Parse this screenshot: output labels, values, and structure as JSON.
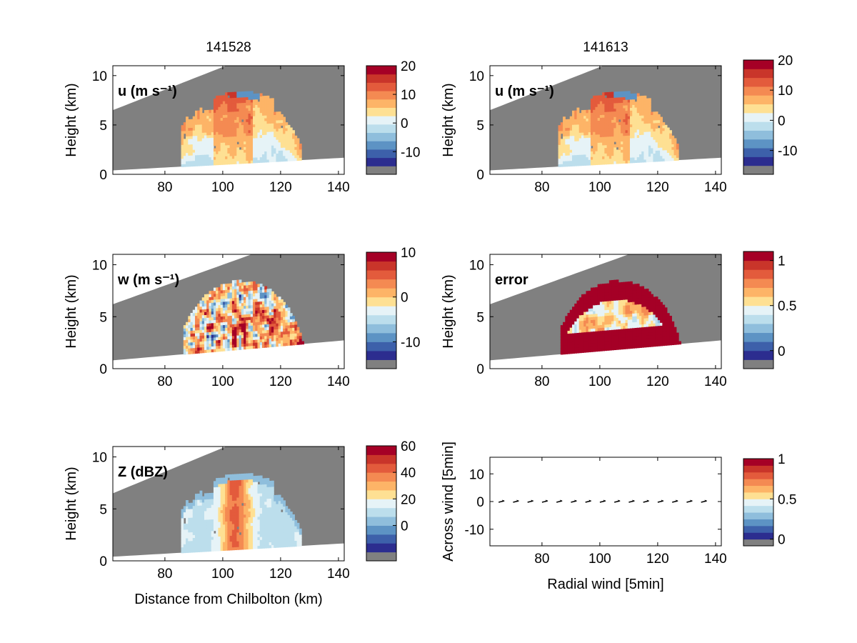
{
  "figure": {
    "timestamps": [
      "141528",
      "141613"
    ]
  },
  "colors": {
    "background_mask": "#808080",
    "colormap": [
      "#2c2d8f",
      "#3d60aa",
      "#5d93c4",
      "#8fbedc",
      "#bcdeec",
      "#e6f3f7",
      "#fee093",
      "#fdb467",
      "#f48a52",
      "#e35b3c",
      "#c9352a",
      "#a50026"
    ]
  },
  "chart_data": [
    {
      "type": "heatmap",
      "id": "u1",
      "title": "141528",
      "annotation": "u (m s⁻¹)",
      "ylabel": "Height (km)",
      "xlabel": "",
      "xlim": [
        62,
        142
      ],
      "ylim": [
        0,
        11
      ],
      "xticks": [
        80,
        100,
        120,
        140
      ],
      "yticks": [
        0,
        5,
        10
      ],
      "field": "u",
      "colorbar": {
        "ticks": [
          "20",
          "10",
          "0",
          "-10"
        ],
        "range": [
          -15,
          20
        ],
        "tick_values": [
          20,
          10,
          0,
          -10
        ]
      }
    },
    {
      "type": "heatmap",
      "id": "u2",
      "title": "141613",
      "annotation": "u (m s⁻¹)",
      "ylabel": "Height (km)",
      "xlabel": "",
      "xlim": [
        62,
        142
      ],
      "ylim": [
        0,
        11
      ],
      "xticks": [
        80,
        100,
        120,
        140
      ],
      "yticks": [
        0,
        5,
        10
      ],
      "field": "u",
      "colorbar": {
        "ticks": [
          "20",
          "10",
          "0",
          "-10"
        ],
        "range": [
          -15,
          20
        ],
        "tick_values": [
          20,
          10,
          0,
          -10
        ]
      }
    },
    {
      "type": "heatmap",
      "id": "w",
      "title": "",
      "annotation": "w (m s⁻¹)",
      "ylabel": "Height (km)",
      "xlabel": "",
      "xlim": [
        62,
        142
      ],
      "ylim": [
        0,
        11
      ],
      "xticks": [
        80,
        100,
        120,
        140
      ],
      "yticks": [
        0,
        5,
        10
      ],
      "field": "w",
      "colorbar": {
        "ticks": [
          "10",
          "0",
          "-10"
        ],
        "range": [
          -14,
          10
        ],
        "tick_values": [
          10,
          0,
          -10
        ]
      }
    },
    {
      "type": "heatmap",
      "id": "error",
      "title": "",
      "annotation": "error",
      "ylabel": "Height (km)",
      "xlabel": "",
      "xlim": [
        62,
        142
      ],
      "ylim": [
        0,
        11
      ],
      "xticks": [
        80,
        100,
        120,
        140
      ],
      "yticks": [
        0,
        5,
        10
      ],
      "field": "error",
      "colorbar": {
        "ticks": [
          "1",
          "0.5",
          "0"
        ],
        "range": [
          -0.1,
          1.1
        ],
        "tick_values": [
          1,
          0.5,
          0
        ]
      }
    },
    {
      "type": "heatmap",
      "id": "z",
      "title": "",
      "annotation": "Z (dBZ)",
      "ylabel": "Height (km)",
      "xlabel": "Distance from Chilbolton (km)",
      "xlim": [
        62,
        142
      ],
      "ylim": [
        0,
        11
      ],
      "xticks": [
        80,
        100,
        120,
        140
      ],
      "yticks": [
        0,
        5,
        10
      ],
      "field": "z",
      "colorbar": {
        "ticks": [
          "60",
          "40",
          "20",
          "0"
        ],
        "range": [
          -20,
          60
        ],
        "tick_values": [
          60,
          40,
          20,
          0
        ]
      }
    },
    {
      "type": "scatter",
      "id": "quiver",
      "title": "",
      "annotation": "",
      "ylabel": "Across wind [5min]",
      "xlabel": "Radial wind [5min]",
      "xlim": [
        62,
        142
      ],
      "ylim": [
        -16,
        16
      ],
      "xticks": [
        80,
        100,
        120,
        140
      ],
      "yticks": [
        10,
        0,
        -10
      ],
      "arrows_x": [
        66,
        71,
        76,
        81,
        86,
        91,
        96,
        101,
        106,
        111,
        116,
        121,
        126,
        131,
        136
      ],
      "arrows_y": [
        0,
        0,
        0,
        0,
        0,
        0,
        0,
        0,
        0,
        0,
        0,
        0,
        0,
        0,
        0
      ],
      "colorbar": {
        "ticks": [
          "1",
          "0.5",
          "0"
        ],
        "range": [
          0,
          1
        ],
        "tick_values": [
          1,
          0.5,
          0
        ]
      }
    }
  ]
}
